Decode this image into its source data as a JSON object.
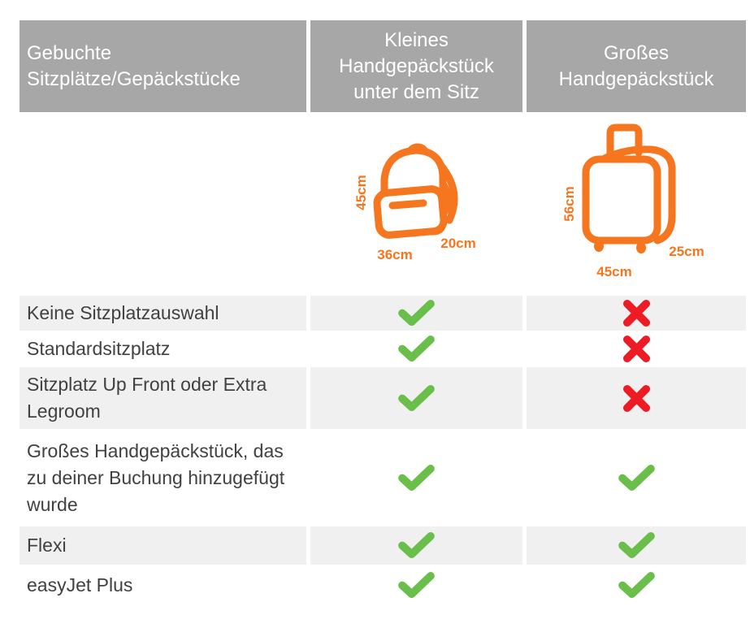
{
  "colors": {
    "header_bg": "#a7a7a7",
    "header_text": "#ffffff",
    "row_alt_bg": "#f0f0f0",
    "row_text": "#414141",
    "orange": "#f5761e",
    "green": "#6abf4b",
    "red": "#ed1c24"
  },
  "header": {
    "col_booked": "Gebuchte Sitzplätze/Gepäckstücke",
    "col_small_bag": "Kleines Handgepäckstück unter dem Sitz",
    "col_large_bag": "Großes Handgepäckstück"
  },
  "figures": {
    "small_bag": {
      "icon": "backpack-icon",
      "height_label": "45cm",
      "width_label": "36cm",
      "depth_label": "20cm"
    },
    "large_bag": {
      "icon": "suitcase-icon",
      "height_label": "56cm",
      "width_label": "45cm",
      "depth_label": "25cm"
    }
  },
  "rows": [
    {
      "label": "Keine Sitzplatzauswahl",
      "small_bag": "yes",
      "large_bag": "no"
    },
    {
      "label": "Standardsitzplatz",
      "small_bag": "yes",
      "large_bag": "no"
    },
    {
      "label": "Sitzplatz Up Front oder Extra Legroom",
      "small_bag": "yes",
      "large_bag": "no"
    },
    {
      "label": "Großes Handgepäckstück, das zu deiner Buchung hinzugefügt wurde",
      "small_bag": "yes",
      "large_bag": "yes"
    },
    {
      "label": "Flexi",
      "small_bag": "yes",
      "large_bag": "yes"
    },
    {
      "label": "easyJet Plus",
      "small_bag": "yes",
      "large_bag": "yes"
    }
  ]
}
